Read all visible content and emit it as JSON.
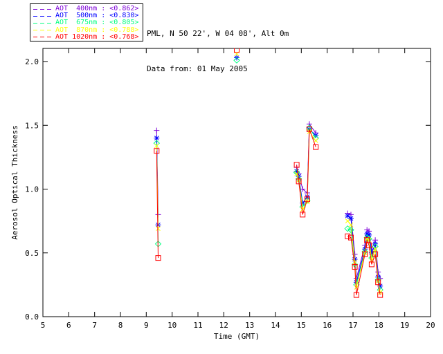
{
  "header": {
    "line1": "PML, N 50 22', W 04 08', Alt 0m",
    "line2": "Data from: 01 May 2005"
  },
  "chart_data": {
    "type": "scatter",
    "title": "",
    "xlabel": "Time (GMT)",
    "ylabel": "Aerosol Optical Thickness",
    "xlim": [
      5,
      20
    ],
    "ylim": [
      0,
      2.103
    ],
    "xticks": [
      5,
      6,
      7,
      8,
      9,
      10,
      11,
      12,
      13,
      14,
      15,
      16,
      17,
      18,
      19,
      20
    ],
    "yticks": [
      0.0,
      0.5,
      1.0,
      1.5,
      2.0
    ],
    "ytick_labels": [
      "0.0",
      "0.5",
      "1.0",
      "1.5",
      "2.0"
    ],
    "grid": false,
    "legend_position": "top-left-outside",
    "line_style": "dashed-in-legend-solid-in-plot",
    "series": [
      {
        "name": "AOT 400nm",
        "wavelength": "400nm",
        "label": "AOT  400nm : <0.862>",
        "mean": 0.862,
        "color": "#7d00d8",
        "marker": "plus",
        "clusters": [
          [
            [
              9.4,
              1.46
            ],
            [
              9.46,
              0.8
            ]
          ],
          [
            [
              14.82,
              1.17
            ],
            [
              14.9,
              1.12
            ],
            [
              15.05,
              1.0
            ],
            [
              15.23,
              0.97
            ],
            [
              15.31,
              1.51
            ],
            [
              15.56,
              1.44
            ]
          ],
          [
            [
              16.79,
              0.81
            ],
            [
              16.92,
              0.8
            ],
            [
              17.07,
              0.49
            ],
            [
              17.13,
              0.3
            ],
            [
              17.46,
              0.56
            ],
            [
              17.54,
              0.68
            ],
            [
              17.62,
              0.67
            ],
            [
              17.72,
              0.53
            ],
            [
              17.86,
              0.6
            ],
            [
              17.97,
              0.35
            ],
            [
              18.05,
              0.3
            ]
          ]
        ]
      },
      {
        "name": "AOT 500nm",
        "wavelength": "500nm",
        "label": "AOT  500nm : <0.830>",
        "mean": 0.83,
        "color": "#0000ff",
        "marker": "asterisk",
        "clusters": [
          [
            [
              9.4,
              1.4
            ],
            [
              9.46,
              0.72
            ]
          ],
          [
            [
              12.5,
              2.03
            ]
          ],
          [
            [
              14.82,
              1.14
            ],
            [
              14.9,
              1.1
            ],
            [
              15.05,
              0.89
            ],
            [
              15.23,
              0.94
            ],
            [
              15.31,
              1.47
            ],
            [
              15.56,
              1.42
            ]
          ],
          [
            [
              16.79,
              0.79
            ],
            [
              16.92,
              0.77
            ],
            [
              17.07,
              0.45
            ],
            [
              17.13,
              0.27
            ],
            [
              17.46,
              0.53
            ],
            [
              17.54,
              0.65
            ],
            [
              17.62,
              0.64
            ],
            [
              17.72,
              0.5
            ],
            [
              17.86,
              0.57
            ],
            [
              17.97,
              0.31
            ],
            [
              18.05,
              0.24
            ]
          ]
        ]
      },
      {
        "name": "AOT 675nm",
        "wavelength": "675nm",
        "label": "AOT  675nm : <0.805>",
        "mean": 0.805,
        "color": "#00ff7f",
        "marker": "diamond",
        "clusters": [
          [
            [
              9.4,
              1.36
            ],
            [
              9.46,
              0.57
            ]
          ],
          [
            [
              12.5,
              2.01
            ]
          ],
          [
            [
              14.82,
              1.13
            ],
            [
              14.9,
              1.08
            ],
            [
              15.05,
              0.86
            ],
            [
              15.23,
              0.91
            ],
            [
              15.31,
              1.48
            ],
            [
              15.56,
              1.4
            ]
          ],
          [
            [
              16.79,
              0.69
            ],
            [
              16.92,
              0.68
            ],
            [
              17.07,
              0.41
            ],
            [
              17.13,
              0.25
            ],
            [
              17.46,
              0.51
            ],
            [
              17.54,
              0.62
            ],
            [
              17.62,
              0.61
            ],
            [
              17.72,
              0.46
            ],
            [
              17.86,
              0.55
            ],
            [
              17.97,
              0.29
            ],
            [
              18.05,
              0.21
            ]
          ]
        ]
      },
      {
        "name": "AOT 870nm",
        "wavelength": "870nm",
        "label": "AOT  870nm : <0.788>",
        "mean": 0.788,
        "color": "#ffff00",
        "marker": "cross",
        "clusters": [
          [
            [
              9.4,
              1.34
            ],
            [
              9.46,
              0.69
            ]
          ],
          [
            [
              12.5,
              2.06
            ]
          ],
          [
            [
              14.82,
              1.12
            ],
            [
              14.9,
              1.07
            ],
            [
              15.05,
              0.84
            ],
            [
              15.23,
              0.9
            ],
            [
              15.31,
              1.45
            ],
            [
              15.56,
              1.38
            ]
          ],
          [
            [
              16.79,
              0.75
            ],
            [
              16.92,
              0.72
            ],
            [
              17.07,
              0.43
            ],
            [
              17.13,
              0.23
            ],
            [
              17.46,
              0.5
            ],
            [
              17.54,
              0.61
            ],
            [
              17.62,
              0.6
            ],
            [
              17.72,
              0.44
            ],
            [
              17.86,
              0.53
            ],
            [
              17.97,
              0.28
            ],
            [
              18.05,
              0.19
            ]
          ]
        ]
      },
      {
        "name": "AOT 1020nm",
        "wavelength": "1020nm",
        "label": "AOT 1020nm : <0.768>",
        "mean": 0.768,
        "color": "#ff0000",
        "marker": "square",
        "clusters": [
          [
            [
              9.4,
              1.3
            ],
            [
              9.46,
              0.46
            ]
          ],
          [
            [
              12.5,
              2.09
            ]
          ],
          [
            [
              14.82,
              1.19
            ],
            [
              14.9,
              1.06
            ],
            [
              15.05,
              0.8
            ],
            [
              15.23,
              0.92
            ],
            [
              15.31,
              1.47
            ],
            [
              15.56,
              1.33
            ]
          ],
          [
            [
              16.79,
              0.63
            ],
            [
              16.92,
              0.62
            ],
            [
              17.07,
              0.39
            ],
            [
              17.13,
              0.17
            ],
            [
              17.46,
              0.49
            ],
            [
              17.54,
              0.6
            ],
            [
              17.62,
              0.56
            ],
            [
              17.72,
              0.41
            ],
            [
              17.86,
              0.49
            ],
            [
              17.97,
              0.27
            ],
            [
              18.05,
              0.17
            ]
          ]
        ]
      }
    ]
  }
}
